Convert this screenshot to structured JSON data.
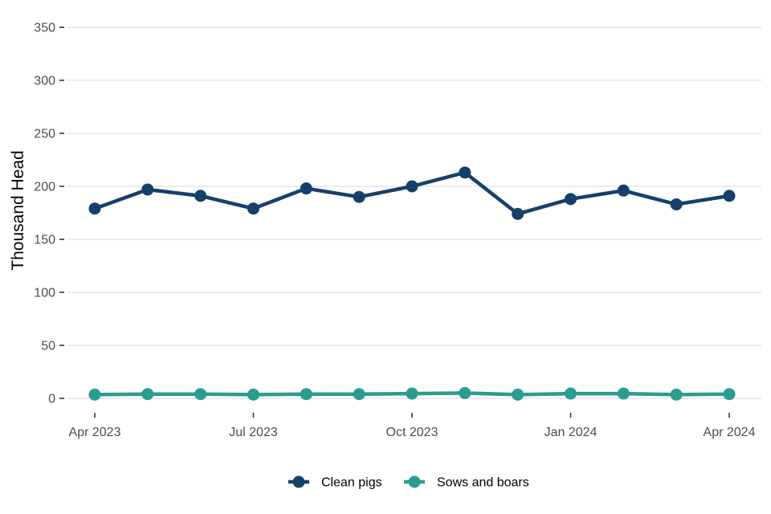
{
  "chart_data": {
    "type": "line",
    "title": "",
    "xlabel": "",
    "ylabel": "Thousand Head",
    "x": [
      "2023-04",
      "2023-05",
      "2023-06",
      "2023-07",
      "2023-08",
      "2023-09",
      "2023-10",
      "2023-11",
      "2023-12",
      "2024-01",
      "2024-02",
      "2024-03",
      "2024-04"
    ],
    "x_ticks": [
      {
        "x": "2023-04",
        "label": "Apr 2023"
      },
      {
        "x": "2023-07",
        "label": "Jul 2023"
      },
      {
        "x": "2023-10",
        "label": "Oct 2023"
      },
      {
        "x": "2024-01",
        "label": "Jan 2024"
      },
      {
        "x": "2024-04",
        "label": "Apr 2024"
      }
    ],
    "y_ticks": [
      "0",
      "50",
      "100",
      "150",
      "200",
      "250",
      "300",
      "350"
    ],
    "ylim": [
      0,
      350
    ],
    "grid": true,
    "legend_position": "bottom",
    "series": [
      {
        "name": "Clean pigs",
        "color": "#16406a",
        "values": [
          179,
          197,
          191,
          179,
          198,
          190,
          200,
          213,
          174,
          188,
          196,
          183,
          191
        ]
      },
      {
        "name": "Sows and boars",
        "color": "#2a9d8f",
        "values": [
          3.5,
          4,
          4,
          3.5,
          4,
          4,
          4.5,
          5,
          3.5,
          4.5,
          4.5,
          3.5,
          4
        ]
      }
    ]
  }
}
